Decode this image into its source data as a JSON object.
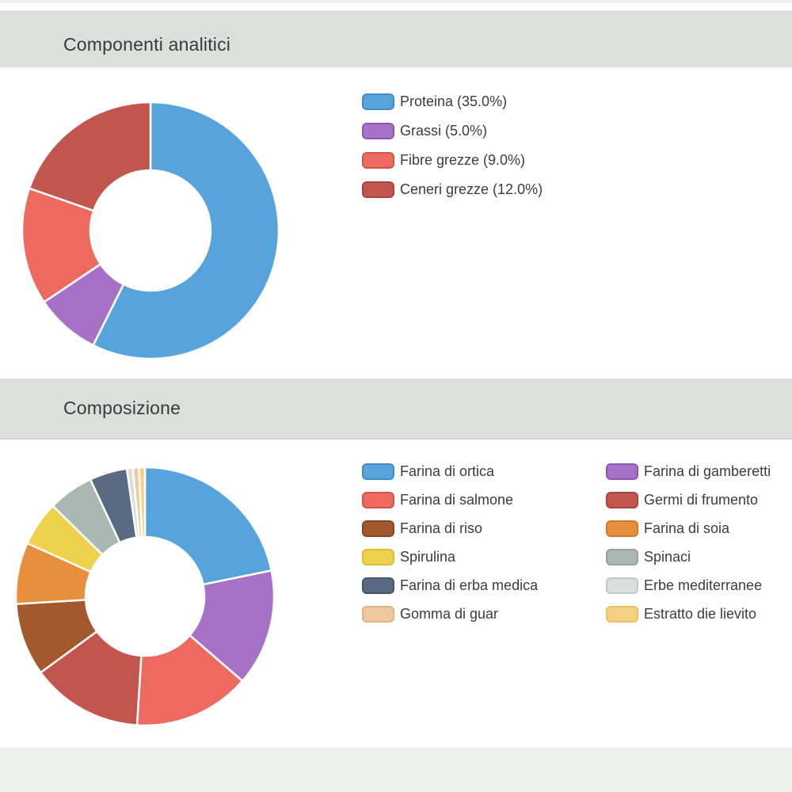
{
  "page": {
    "background": "#ffffff",
    "top_strip_color": "#f2f2f2",
    "header_band_color": "#dbe0dd",
    "bottom_band_color": "#edf1ee",
    "title_color": "#3a3a3a",
    "legend_text_color": "#3c3c3c"
  },
  "sections": [
    {
      "title": "Componenti analitici"
    },
    {
      "title": "Composizione"
    }
  ],
  "chart_data": [
    {
      "type": "pie",
      "subtype": "donut",
      "section_title": "Componenti analitici",
      "legend_position": "right",
      "legend_columns": 1,
      "start_angle": "top",
      "direction": "clockwise",
      "unit": "%",
      "slices": [
        {
          "name": "Proteina",
          "display": "Proteina (35.0%)",
          "value": 35.0,
          "fill": "#57a3dc",
          "border": "#3f8cc6"
        },
        {
          "name": "Grassi",
          "display": "Grassi (5.0%)",
          "value": 5.0,
          "fill": "#a771c8",
          "border": "#8f56b4"
        },
        {
          "name": "Fibre grezze",
          "display": "Fibre grezze (9.0%)",
          "value": 9.0,
          "fill": "#ec6a5e",
          "border": "#d5544a"
        },
        {
          "name": "Ceneri grezze",
          "display": "Ceneri grezze (12.0%)",
          "value": 12.0,
          "fill": "#c3564c",
          "border": "#aa443c"
        }
      ]
    },
    {
      "type": "pie",
      "subtype": "donut",
      "section_title": "Composizione",
      "legend_position": "right",
      "legend_columns": 2,
      "start_angle": "top",
      "direction": "clockwise",
      "values_note": "percentages not displayed in UI; values estimated from arc angles",
      "slices": [
        {
          "name": "Farina di ortica",
          "display": "Farina di ortica",
          "value": 21.8,
          "fill": "#57a3dc",
          "border": "#3f8cc6"
        },
        {
          "name": "Farina di gamberetti",
          "display": "Farina di gamberetti",
          "value": 14.6,
          "fill": "#a771c8",
          "border": "#8f56b4"
        },
        {
          "name": "Farina di salmone",
          "display": "Farina di salmone",
          "value": 14.6,
          "fill": "#ec6a5e",
          "border": "#d5544a"
        },
        {
          "name": "Germi di frumento",
          "display": "Germi di frumento",
          "value": 14.0,
          "fill": "#c3564c",
          "border": "#aa443c"
        },
        {
          "name": "Farina di riso",
          "display": "Farina di riso",
          "value": 9.1,
          "fill": "#a4582e",
          "border": "#8a4624"
        },
        {
          "name": "Farina di soia",
          "display": "Farina di soia",
          "value": 7.7,
          "fill": "#e78f3c",
          "border": "#d07a29"
        },
        {
          "name": "Spirulina",
          "display": "Spirulina",
          "value": 5.6,
          "fill": "#eed24e",
          "border": "#dcbd38"
        },
        {
          "name": "Spinaci",
          "display": "Spinaci",
          "value": 5.7,
          "fill": "#aab7b2",
          "border": "#93a29c"
        },
        {
          "name": "Farina di erba medica",
          "display": "Farina di erba medica",
          "value": 4.7,
          "fill": "#596a82",
          "border": "#46566b"
        },
        {
          "name": "Erbe mediterranee",
          "display": "Erbe mediterranee",
          "value": 0.75,
          "fill": "#dbdedd",
          "border": "#c3c8c6"
        },
        {
          "name": "Gomma di guar",
          "display": "Gomma di guar",
          "value": 0.75,
          "fill": "#f1c79d",
          "border": "#e6b183"
        },
        {
          "name": "Estratto die lievito",
          "display": "Estratto die lievito",
          "value": 0.75,
          "fill": "#f6d083",
          "border": "#edbd62"
        }
      ]
    }
  ]
}
